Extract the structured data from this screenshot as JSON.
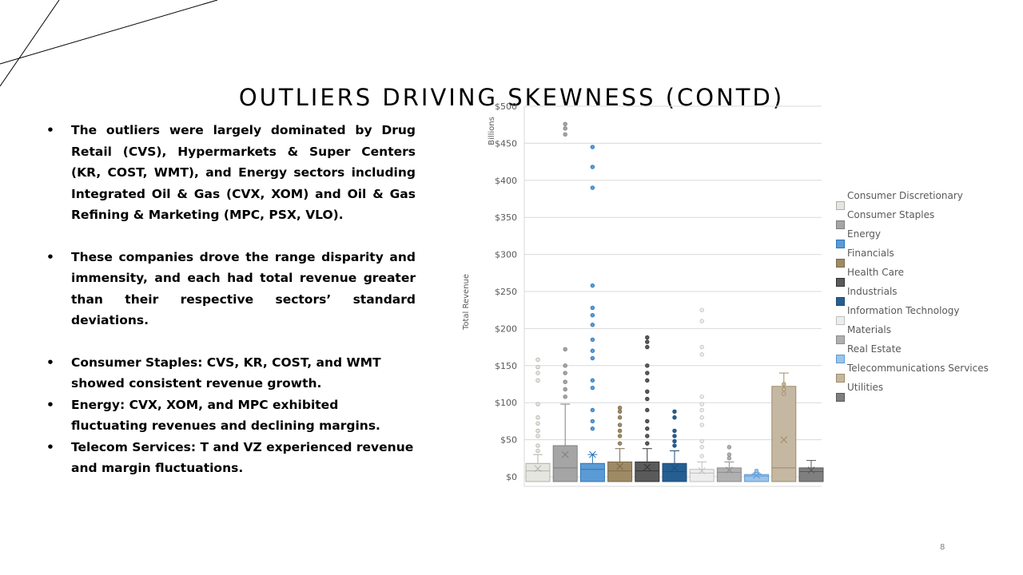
{
  "slide": {
    "title": "OUTLIERS DRIVING SKEWNESS (CONTD)",
    "page_number": "8",
    "bullets": [
      "The outliers were largely dominated by Drug Retail (CVS), Hypermarkets & Super Centers (KR, COST, WMT), and Energy sectors including Integrated Oil & Gas (CVX, XOM) and Oil & Gas Refining & Marketing (MPC, PSX, VLO).",
      "These companies drove the range disparity and immensity, and each had total revenue greater than their respective sectors’ standard deviations.",
      "Consumer Staples: CVS, KR, COST, and WMT showed consistent revenue growth.",
      "Energy: CVX, XOM, and MPC exhibited fluctuating revenues and declining margins.",
      "Telecom Services: T and VZ experienced revenue and margin fluctuations."
    ]
  },
  "chart_data": {
    "type": "box",
    "title": "",
    "ylabel": "Total Revenue",
    "yunit_label": "Billions",
    "ylim": [
      0,
      500
    ],
    "yticks": [
      "$0",
      "$50",
      "$100",
      "$150",
      "$200",
      "$250",
      "$300",
      "$350",
      "$400",
      "$450",
      "$500"
    ],
    "grid": true,
    "legend_position": "right",
    "series": [
      {
        "name": "Consumer Discretionary",
        "color": "#e6e6e0",
        "stroke": "#b0b0a8",
        "q1": 0,
        "median": 8,
        "q3": 18,
        "mean": 11,
        "whisker_low": 0,
        "whisker_high": 30,
        "outliers": [
          35,
          42,
          55,
          62,
          72,
          80,
          98,
          130,
          140,
          148,
          158
        ]
      },
      {
        "name": "Consumer Staples",
        "color": "#a5a5a5",
        "stroke": "#7f7f7f",
        "q1": 0,
        "median": 12,
        "q3": 42,
        "mean": 30,
        "whisker_low": 0,
        "whisker_high": 98,
        "outliers": [
          108,
          118,
          128,
          140,
          150,
          172,
          462,
          470,
          476
        ]
      },
      {
        "name": "Energy",
        "color": "#5b9bd5",
        "stroke": "#2e75b6",
        "q1": 0,
        "median": 10,
        "q3": 18,
        "mean": 30,
        "whisker_low": 0,
        "whisker_high": 30,
        "outliers": [
          65,
          75,
          90,
          120,
          130,
          160,
          170,
          185,
          205,
          218,
          228,
          258,
          390,
          418,
          445
        ]
      },
      {
        "name": "Financials",
        "color": "#9e8b66",
        "stroke": "#7a6a4b",
        "q1": 0,
        "median": 8,
        "q3": 20,
        "mean": 14,
        "whisker_low": 0,
        "whisker_high": 38,
        "outliers": [
          45,
          55,
          62,
          70,
          80,
          88,
          93
        ]
      },
      {
        "name": "Health Care",
        "color": "#5a5a5a",
        "stroke": "#333333",
        "q1": 0,
        "median": 8,
        "q3": 20,
        "mean": 13,
        "whisker_low": 0,
        "whisker_high": 38,
        "outliers": [
          45,
          55,
          65,
          75,
          90,
          105,
          115,
          130,
          140,
          150,
          175,
          182,
          188
        ]
      },
      {
        "name": "Industrials",
        "color": "#255e91",
        "stroke": "#1f4e79",
        "q1": 0,
        "median": 7,
        "q3": 18,
        "mean": 12,
        "whisker_low": 0,
        "whisker_high": 35,
        "outliers": [
          42,
          48,
          55,
          62,
          80,
          88
        ]
      },
      {
        "name": "Information Technology",
        "color": "#ededed",
        "stroke": "#bfbfbf",
        "q1": 0,
        "median": 5,
        "q3": 10,
        "mean": 8,
        "whisker_low": 0,
        "whisker_high": 20,
        "outliers": [
          28,
          40,
          48,
          70,
          80,
          90,
          98,
          108,
          165,
          175,
          210,
          225
        ]
      },
      {
        "name": "Materials",
        "color": "#b0b0b0",
        "stroke": "#8c8c8c",
        "q1": 0,
        "median": 6,
        "q3": 12,
        "mean": 9,
        "whisker_low": 0,
        "whisker_high": 20,
        "outliers": [
          25,
          30,
          40
        ]
      },
      {
        "name": "Real Estate",
        "color": "#9dc3e6",
        "stroke": "#5b9bd5",
        "q1": 0,
        "median": 1,
        "q3": 3,
        "mean": 2,
        "whisker_low": 0,
        "whisker_high": 4,
        "outliers": [
          5,
          8
        ]
      },
      {
        "name": "Telecommunications Services",
        "color": "#c4b8a2",
        "stroke": "#9e8b66",
        "q1": 0,
        "median": 12,
        "q3": 122,
        "mean": 50,
        "whisker_low": 0,
        "whisker_high": 140,
        "outliers": [
          112,
          118,
          125
        ]
      },
      {
        "name": "Utilities",
        "color": "#7f7f7f",
        "stroke": "#595959",
        "q1": 0,
        "median": 7,
        "q3": 12,
        "mean": 9,
        "whisker_low": 0,
        "whisker_high": 22,
        "outliers": []
      }
    ]
  }
}
